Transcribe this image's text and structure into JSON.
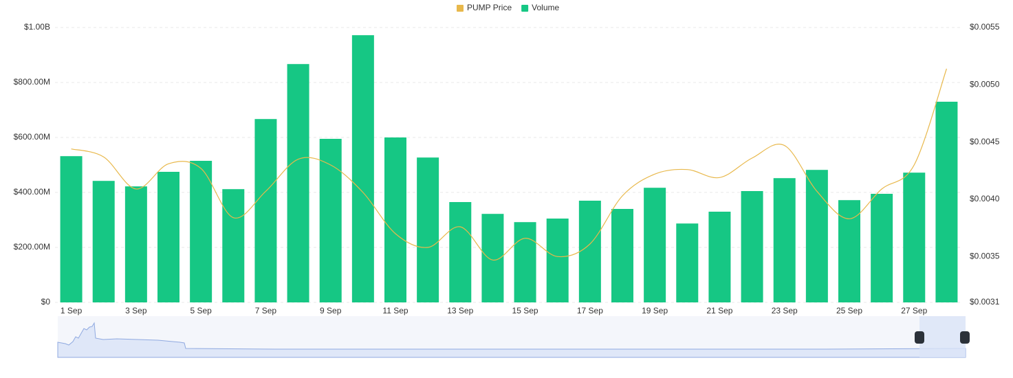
{
  "chart_data": {
    "type": "bar",
    "categories": [
      "1 Sep",
      null,
      "3 Sep",
      null,
      "5 Sep",
      null,
      "7 Sep",
      null,
      "9 Sep",
      null,
      "11 Sep",
      null,
      "13 Sep",
      null,
      "15 Sep",
      null,
      "17 Sep",
      null,
      "19 Sep",
      null,
      "21 Sep",
      null,
      "23 Sep",
      null,
      "25 Sep",
      null,
      "27 Sep",
      null
    ],
    "series": [
      {
        "name": "PUMP Price",
        "color": "#e8b84b",
        "type": "line",
        "axis": "y2",
        "values": [
          0.00444,
          0.00437,
          0.00409,
          0.00431,
          0.00427,
          0.00384,
          0.00407,
          0.00435,
          0.0043,
          0.00406,
          0.0037,
          0.00358,
          0.00376,
          0.00347,
          0.00366,
          0.0035,
          0.00361,
          0.00403,
          0.00422,
          0.00426,
          0.00419,
          0.00436,
          0.00447,
          0.00407,
          0.00383,
          0.00409,
          0.0043,
          0.00514
        ]
      },
      {
        "name": "Volume",
        "color": "#16c784",
        "type": "bar",
        "values": [
          532000000,
          442000000,
          422000000,
          475000000,
          515000000,
          412000000,
          667000000,
          867000000,
          595000000,
          972000000,
          600000000,
          527000000,
          365000000,
          322000000,
          292000000,
          305000000,
          370000000,
          340000000,
          417000000,
          287000000,
          330000000,
          405000000,
          452000000,
          482000000,
          372000000,
          395000000,
          472000000,
          730000000
        ]
      }
    ],
    "ylim": [
      0,
      1000000000
    ],
    "yticks": [
      {
        "value": 0,
        "label": "$0"
      },
      {
        "value": 200000000,
        "label": "$200.00M"
      },
      {
        "value": 400000000,
        "label": "$400.00M"
      },
      {
        "value": 600000000,
        "label": "$600.00M"
      },
      {
        "value": 800000000,
        "label": "$800.00M"
      },
      {
        "value": 1000000000,
        "label": "$1.00B"
      }
    ],
    "y2lim": [
      0.0031,
      0.0055
    ],
    "y2ticks": [
      {
        "value": 0.0031,
        "label": "$0.0031"
      },
      {
        "value": 0.0035,
        "label": "$0.0035"
      },
      {
        "value": 0.004,
        "label": "$0.0040"
      },
      {
        "value": 0.0045,
        "label": "$0.0045"
      },
      {
        "value": 0.005,
        "label": "$0.0050"
      },
      {
        "value": 0.0055,
        "label": "$0.0055"
      }
    ],
    "grid": true
  }
}
